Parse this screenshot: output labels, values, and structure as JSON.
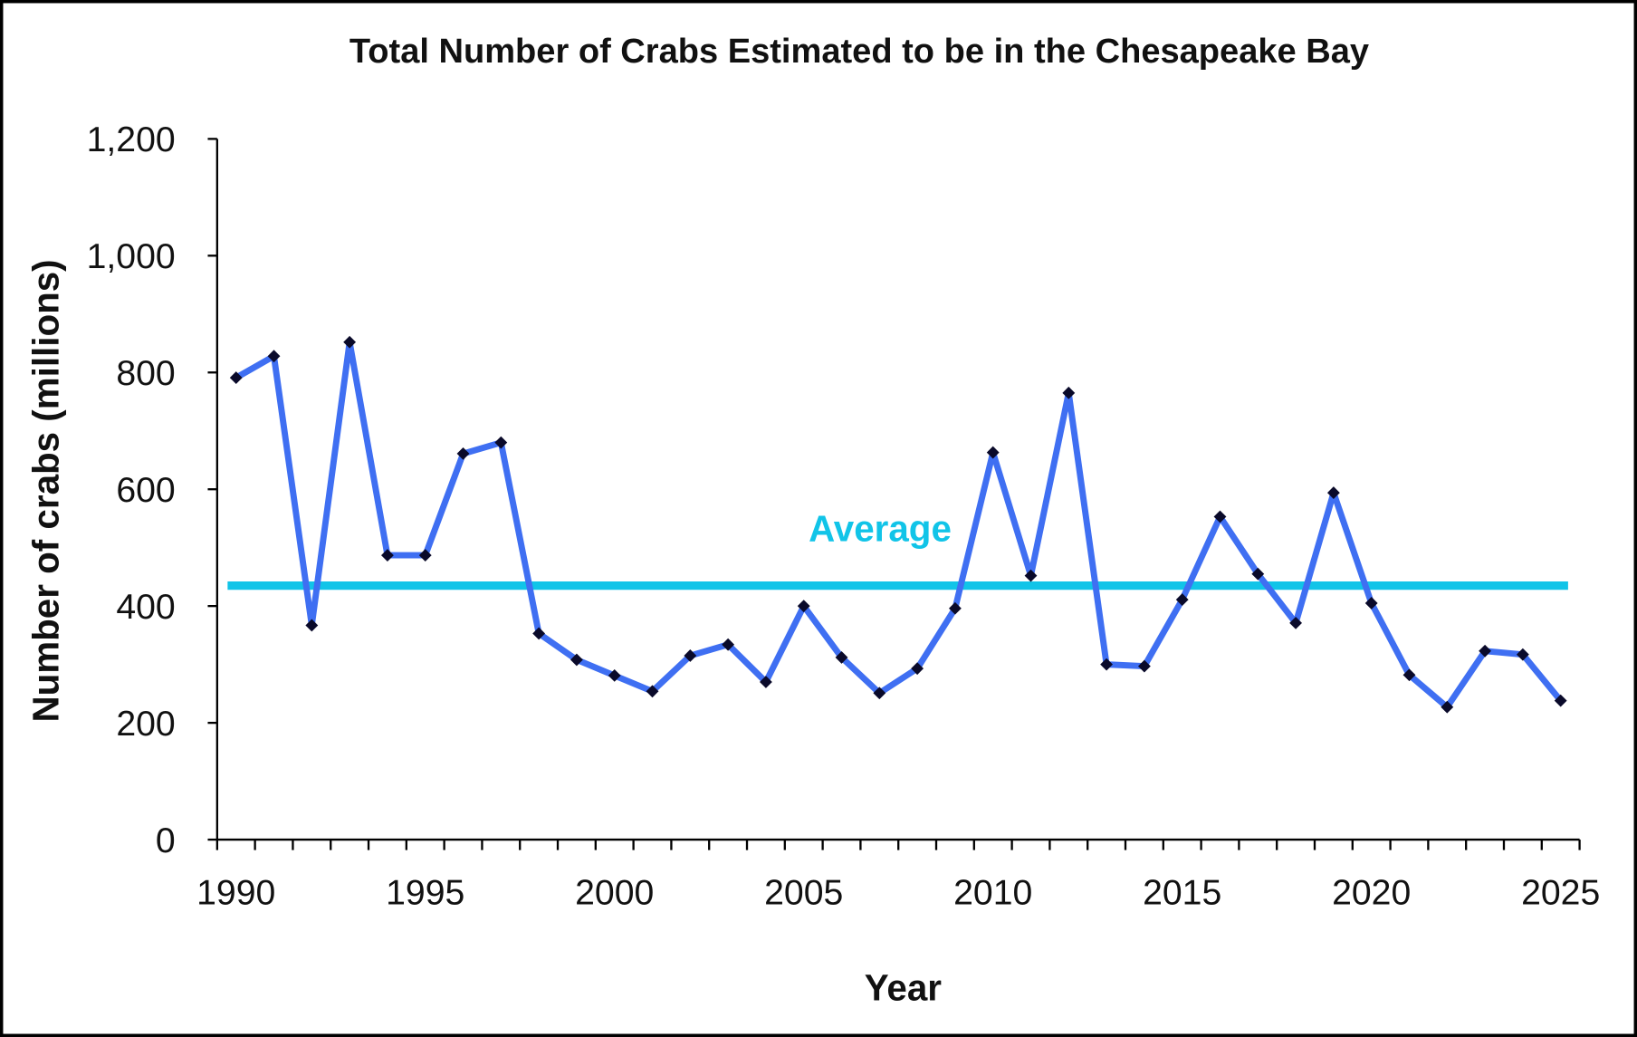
{
  "chart_data": {
    "type": "line",
    "title": "Total Number of Crabs Estimated to be in the Chesapeake Bay",
    "xlabel": "Year",
    "ylabel": "Number of crabs (millions)",
    "ylim": [
      0,
      1200
    ],
    "yticks": [
      "0",
      "200",
      "400",
      "600",
      "800",
      "1,000",
      "1,200"
    ],
    "xtick_labels": [
      "1990",
      "1995",
      "2000",
      "2005",
      "2010",
      "2015",
      "2020",
      "2025"
    ],
    "grid": false,
    "x": [
      1990,
      1991,
      1992,
      1993,
      1994,
      1995,
      1996,
      1997,
      1998,
      1999,
      2000,
      2001,
      2002,
      2003,
      2004,
      2005,
      2006,
      2007,
      2008,
      2009,
      2010,
      2011,
      2012,
      2013,
      2014,
      2015,
      2016,
      2017,
      2018,
      2019,
      2020,
      2021,
      2022,
      2023,
      2024,
      2025
    ],
    "series": [
      {
        "values": [
          791,
          828,
          367,
          852,
          487,
          487,
          661,
          680,
          353,
          308,
          281,
          254,
          315,
          334,
          270,
          400,
          312,
          251,
          293,
          396,
          663,
          452,
          765,
          300,
          297,
          411,
          553,
          455,
          371,
          594,
          405,
          282,
          227,
          323,
          317,
          238
        ],
        "color": "#3f6ff2"
      }
    ],
    "average": {
      "label": "Average",
      "value": 435,
      "color": "#11c4e8"
    }
  }
}
